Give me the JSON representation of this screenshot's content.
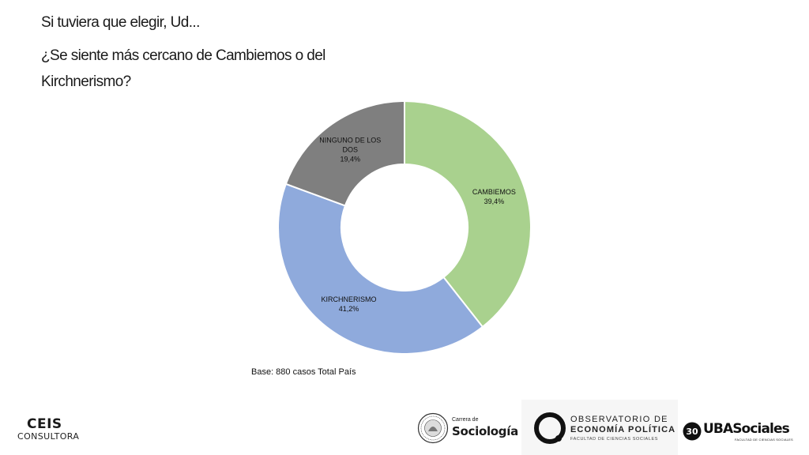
{
  "header": {
    "line1": "Si tuviera que elegir, Ud...",
    "line2": "¿Se siente más cercano de Cambiemos o del",
    "line3": "Kirchnerismo?"
  },
  "chart_data": {
    "type": "pie",
    "donut": true,
    "slices": [
      {
        "label": "CAMBIEMOS",
        "label_lines": [
          "CAMBIEMOS"
        ],
        "value": 39.4,
        "value_label": "39,4%",
        "color": "#a9d18e"
      },
      {
        "label": "KIRCHNERISMO",
        "label_lines": [
          "KIRCHNERISMO"
        ],
        "value": 41.2,
        "value_label": "41,2%",
        "color": "#8faadc"
      },
      {
        "label": "NINGUNO DE LOS DOS",
        "label_lines": [
          "NINGUNO DE LOS",
          "DOS"
        ],
        "value": 19.4,
        "value_label": "19,4%",
        "color": "#7f7f7f"
      }
    ],
    "start_angle": "12 o'clock, clockwise",
    "legend": "none",
    "note": "Base: 880 casos Total País"
  },
  "footer": {
    "ceis_title": "CEIS",
    "ceis_sub": "CONSULTORA",
    "sociologia_small": "Carrera de",
    "sociologia_big": "Sociología",
    "obs_line1": "OBSERVATORIO DE",
    "obs_line2": "ECONOMÍA POLÍTICA",
    "obs_line3": "FACULTAD DE CIENCIAS SOCIALES",
    "uba_30": "30",
    "uba_title": "UBASociales",
    "uba_sub": "FACULTAD DE CIENCIAS SOCIALES"
  }
}
